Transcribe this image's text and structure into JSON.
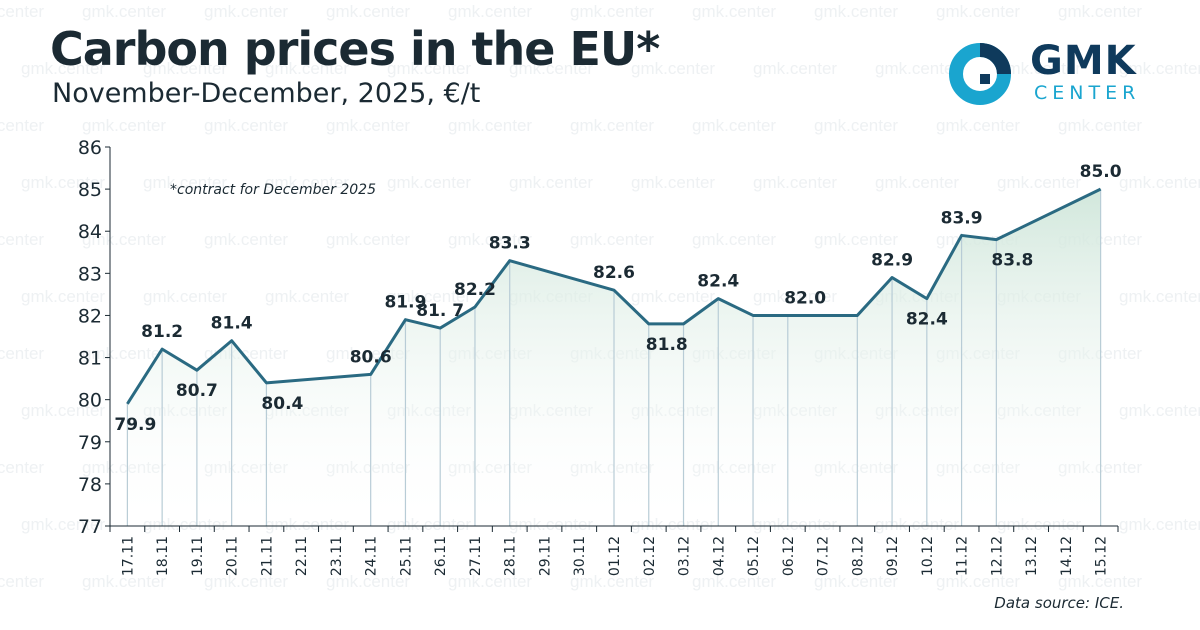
{
  "header": {
    "title": "Carbon prices in the EU*",
    "subtitle": "November-December, 2025, €/t"
  },
  "logo": {
    "word": "GMK",
    "sub": "CENTER"
  },
  "watermark": "gmk.center",
  "source": "Data source: ICE.",
  "colors": {
    "line": "#2a6a82",
    "fill": "#cfe6da",
    "text": "#1b2a33",
    "axis": "#1b2a33",
    "logo_dark": "#0f3a5c",
    "logo_light": "#1aa5cf"
  },
  "chart_data": {
    "type": "area",
    "title": "Carbon prices in the EU*",
    "subtitle": "November-December, 2025, €/t",
    "annotation": "*contract for December 2025",
    "ylim": [
      77,
      86
    ],
    "yticks": [
      77,
      78,
      79,
      80,
      81,
      82,
      83,
      84,
      85,
      86
    ],
    "categories": [
      "17.11",
      "18.11",
      "19.11",
      "20.11",
      "21.11",
      "22.11",
      "23.11",
      "24.11",
      "25.11",
      "26.11",
      "27.11",
      "28.11",
      "29.11",
      "30.11",
      "01.12",
      "02.12",
      "03.12",
      "04.12",
      "05.12",
      "06.12",
      "07.12",
      "08.12",
      "09.12",
      "10.12",
      "11.12",
      "12.12",
      "13.12",
      "14.12",
      "15.12"
    ],
    "series": [
      {
        "points": [
          {
            "x": "17.11",
            "y": 79.9,
            "label": "79.9"
          },
          {
            "x": "18.11",
            "y": 81.2,
            "label": "81.2"
          },
          {
            "x": "19.11",
            "y": 80.7,
            "label": "80.7"
          },
          {
            "x": "20.11",
            "y": 81.4,
            "label": "81.4"
          },
          {
            "x": "21.11",
            "y": 80.4,
            "label": "80.4"
          },
          {
            "x": "24.11",
            "y": 80.6,
            "label": "80.6"
          },
          {
            "x": "25.11",
            "y": 81.9,
            "label": "81.9"
          },
          {
            "x": "26.11",
            "y": 81.7,
            "label": "81. 7"
          },
          {
            "x": "27.11",
            "y": 82.2,
            "label": "82.2"
          },
          {
            "x": "28.11",
            "y": 83.3,
            "label": "83.3"
          },
          {
            "x": "01.12",
            "y": 82.6,
            "label": "82.6"
          },
          {
            "x": "02.12",
            "y": 81.8,
            "label": "81.8"
          },
          {
            "x": "03.12",
            "y": 81.8,
            "label": ""
          },
          {
            "x": "04.12",
            "y": 82.4,
            "label": "82.4"
          },
          {
            "x": "05.12",
            "y": 82.0,
            "label": ""
          },
          {
            "x": "06.12",
            "y": 82.0,
            "label": "82.0"
          },
          {
            "x": "08.12",
            "y": 82.0,
            "label": ""
          },
          {
            "x": "09.12",
            "y": 82.9,
            "label": "82.9"
          },
          {
            "x": "10.12",
            "y": 82.4,
            "label": "82.4"
          },
          {
            "x": "11.12",
            "y": 83.9,
            "label": "83.9"
          },
          {
            "x": "12.12",
            "y": 83.8,
            "label": "83.8"
          },
          {
            "x": "15.12",
            "y": 85.0,
            "label": "85.0"
          }
        ]
      }
    ],
    "grid": false,
    "legend": "none"
  }
}
